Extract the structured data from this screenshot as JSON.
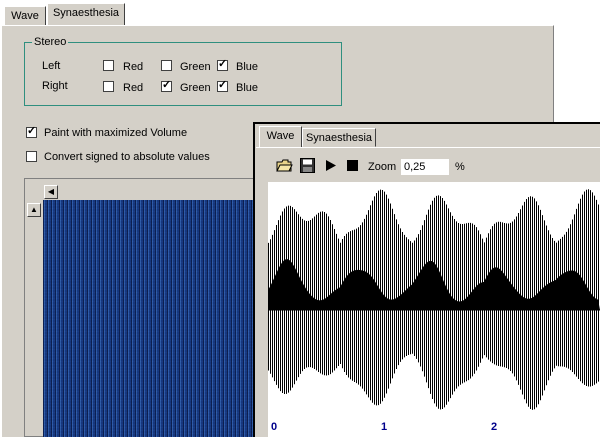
{
  "back_window": {
    "tabs": [
      {
        "label": "Wave"
      },
      {
        "label": "Synaesthesia"
      }
    ],
    "stereo": {
      "title": "Stereo",
      "rows": [
        {
          "label": "Left",
          "red": "Red",
          "green": "Green",
          "blue": "Blue",
          "red_checked": false,
          "green_checked": false,
          "blue_checked": true
        },
        {
          "label": "Right",
          "red": "Red",
          "green": "Green",
          "blue": "Blue",
          "red_checked": false,
          "green_checked": true,
          "blue_checked": true
        }
      ]
    },
    "options": [
      {
        "label": "Paint with maximized Volume",
        "checked": true
      },
      {
        "label": "Convert signed to absolute values",
        "checked": false
      }
    ]
  },
  "front_window": {
    "tabs": [
      {
        "label": "Wave"
      },
      {
        "label": "Synaesthesia"
      }
    ],
    "toolbar": {
      "zoom_label": "Zoom",
      "zoom_value": "0,25",
      "zoom_unit": "%"
    },
    "axis_labels": [
      "0",
      "1",
      "2"
    ]
  },
  "colors": {
    "panel": "#d4d0c8",
    "spectrogram": "#1a3f86",
    "axis_text": "#00008b",
    "groupbox_border": "#2f8f7f"
  }
}
